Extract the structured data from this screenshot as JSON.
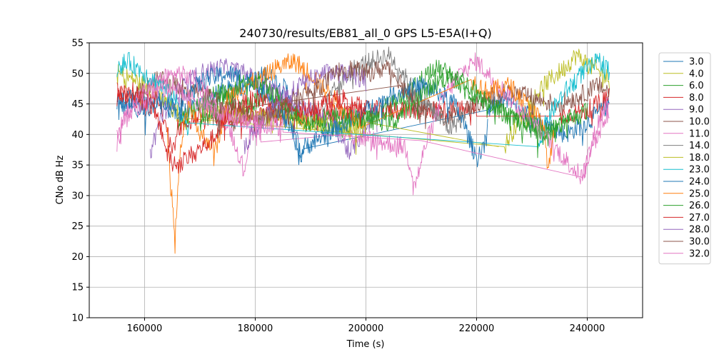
{
  "chart_data": {
    "type": "line",
    "title": "240730/results/EB81_all_0 GPS L5-E5A(I+Q)",
    "xlabel": "Time (s)",
    "ylabel": "CNo dB Hz",
    "xlim": [
      150000,
      250000
    ],
    "ylim": [
      10,
      55
    ],
    "xticks": [
      160000,
      180000,
      200000,
      220000,
      240000
    ],
    "yticks": [
      10,
      15,
      20,
      25,
      30,
      35,
      40,
      45,
      50,
      55
    ],
    "grid": true,
    "legend_position": "right",
    "series": [
      {
        "name": "3.0",
        "color": "#1f77b4",
        "points": [
          [
            155000,
            45
          ],
          [
            158000,
            44
          ],
          [
            162000,
            46
          ],
          [
            166000,
            43
          ],
          [
            170000,
            45
          ],
          [
            174000,
            47
          ],
          [
            178000,
            48
          ],
          [
            182000,
            50
          ],
          [
            186000,
            47
          ],
          [
            188000,
            37
          ],
          [
            189000,
            38
          ],
          [
            222000,
            44
          ],
          [
            226000,
            46
          ],
          [
            230000,
            43
          ],
          [
            236000,
            40
          ],
          [
            240000,
            42
          ],
          [
            244000,
            45
          ]
        ]
      },
      {
        "name": "4.0",
        "color": "#bcbd22",
        "points": [
          [
            155000,
            50
          ],
          [
            158000,
            49
          ],
          [
            162000,
            47
          ],
          [
            165000,
            44
          ],
          [
            168000,
            42
          ],
          [
            225000,
            38
          ],
          [
            228000,
            43
          ],
          [
            232000,
            48
          ],
          [
            236000,
            51
          ],
          [
            238000,
            53
          ],
          [
            241000,
            51
          ],
          [
            244000,
            49
          ]
        ]
      },
      {
        "name": "6.0",
        "color": "#2ca02c",
        "points": [
          [
            166000,
            42
          ],
          [
            170000,
            45
          ],
          [
            174000,
            47
          ],
          [
            178000,
            44
          ],
          [
            182000,
            47
          ],
          [
            186000,
            44
          ],
          [
            190000,
            42
          ],
          [
            196000,
            41
          ],
          [
            205000,
            45
          ],
          [
            209000,
            48
          ],
          [
            212000,
            51
          ],
          [
            215000,
            50
          ],
          [
            218000,
            47
          ],
          [
            222000,
            45
          ],
          [
            226000,
            43
          ],
          [
            230000,
            42
          ],
          [
            234000,
            40
          ],
          [
            237000,
            44
          ]
        ]
      },
      {
        "name": "8.0",
        "color": "#d62728",
        "points": [
          [
            155000,
            47
          ],
          [
            158000,
            46
          ],
          [
            160000,
            44
          ],
          [
            162000,
            46
          ],
          [
            164000,
            42
          ],
          [
            165000,
            37
          ],
          [
            166000,
            41
          ],
          [
            170000,
            43
          ],
          [
            180000,
            43
          ],
          [
            190000,
            43
          ],
          [
            200000,
            44
          ],
          [
            210000,
            44
          ],
          [
            220000,
            44
          ],
          [
            235000,
            43
          ],
          [
            240000,
            44
          ],
          [
            244000,
            46
          ]
        ]
      },
      {
        "name": "9.0",
        "color": "#9467bd",
        "points": [
          [
            161000,
            37
          ],
          [
            163000,
            43
          ],
          [
            166000,
            47
          ],
          [
            170000,
            50
          ],
          [
            174000,
            51
          ],
          [
            178000,
            50
          ],
          [
            182000,
            48
          ],
          [
            186000,
            46
          ],
          [
            190000,
            44
          ],
          [
            194000,
            42
          ],
          [
            197000,
            37
          ],
          [
            200000,
            41
          ],
          [
            202000,
            44
          ]
        ]
      },
      {
        "name": "10.0",
        "color": "#8c564b",
        "points": [
          [
            158000,
            46
          ],
          [
            162000,
            49
          ],
          [
            166000,
            48
          ],
          [
            170000,
            47
          ],
          [
            174000,
            45
          ],
          [
            176000,
            42
          ],
          [
            178000,
            44
          ],
          [
            206000,
            48
          ],
          [
            210000,
            45
          ],
          [
            214000,
            43
          ],
          [
            218000,
            44
          ],
          [
            222000,
            46
          ],
          [
            226000,
            47
          ],
          [
            230000,
            46
          ],
          [
            234000,
            45
          ],
          [
            238000,
            46
          ],
          [
            242000,
            48
          ],
          [
            244000,
            47
          ]
        ]
      },
      {
        "name": "11.0",
        "color": "#e377c2",
        "points": [
          [
            155000,
            40
          ],
          [
            157000,
            44
          ],
          [
            160000,
            47
          ],
          [
            163000,
            49
          ],
          [
            166000,
            50
          ],
          [
            169000,
            49
          ],
          [
            172000,
            46
          ],
          [
            175000,
            42
          ],
          [
            177000,
            37
          ],
          [
            178000,
            34
          ],
          [
            179000,
            40
          ],
          [
            181000,
            42
          ],
          [
            196000,
            40
          ],
          [
            207000,
            38
          ],
          [
            209000,
            32
          ],
          [
            211000,
            39
          ],
          [
            214000,
            46
          ],
          [
            217000,
            50
          ],
          [
            220000,
            52
          ],
          [
            222000,
            50
          ],
          [
            239000,
            33
          ],
          [
            240000,
            36
          ],
          [
            242000,
            42
          ],
          [
            244000,
            46
          ]
        ]
      },
      {
        "name": "14.0",
        "color": "#7f7f7f",
        "points": [
          [
            192000,
            44
          ],
          [
            195000,
            48
          ],
          [
            198000,
            51
          ],
          [
            201000,
            52
          ],
          [
            204000,
            53
          ],
          [
            206000,
            51
          ],
          [
            208000,
            48
          ],
          [
            212000,
            44
          ],
          [
            215000,
            41
          ],
          [
            218000,
            43
          ]
        ]
      },
      {
        "name": "18.0",
        "color": "#bcbd22",
        "points": [
          [
            170000,
            44
          ],
          [
            200000,
            41
          ],
          [
            224000,
            38
          ]
        ]
      },
      {
        "name": "23.0",
        "color": "#17becf",
        "points": [
          [
            155000,
            51
          ],
          [
            157000,
            52
          ],
          [
            160000,
            50
          ],
          [
            163000,
            48
          ],
          [
            166000,
            45
          ],
          [
            168000,
            41
          ],
          [
            231000,
            38
          ],
          [
            233000,
            43
          ],
          [
            236000,
            47
          ],
          [
            239000,
            50
          ],
          [
            242000,
            52
          ],
          [
            244000,
            51
          ]
        ]
      },
      {
        "name": "24.0",
        "color": "#1f77b4",
        "points": [
          [
            155000,
            45
          ],
          [
            157000,
            46
          ],
          [
            160000,
            44
          ],
          [
            163000,
            46
          ],
          [
            166000,
            44
          ],
          [
            168000,
            47
          ],
          [
            171000,
            49
          ],
          [
            175000,
            50
          ],
          [
            179000,
            49
          ],
          [
            183000,
            46
          ],
          [
            187000,
            40
          ],
          [
            188000,
            36
          ],
          [
            189000,
            38
          ],
          [
            202000,
            45
          ],
          [
            206000,
            47
          ],
          [
            210000,
            48
          ],
          [
            213000,
            47
          ],
          [
            216000,
            45
          ],
          [
            218000,
            41
          ],
          [
            220000,
            36
          ],
          [
            221000,
            38
          ],
          [
            222000,
            41
          ]
        ]
      },
      {
        "name": "25.0",
        "color": "#ff7f0e",
        "points": [
          [
            164000,
            41
          ],
          [
            165500,
            23
          ],
          [
            166500,
            38
          ],
          [
            168000,
            45
          ],
          [
            170000,
            40
          ],
          [
            173000,
            38
          ],
          [
            175000,
            46
          ],
          [
            178000,
            48
          ],
          [
            181000,
            49
          ],
          [
            184000,
            51
          ],
          [
            187000,
            52
          ],
          [
            190000,
            50
          ],
          [
            193000,
            47
          ],
          [
            196000,
            44
          ],
          [
            199000,
            42
          ],
          [
            219000,
            49
          ],
          [
            222000,
            47
          ],
          [
            226000,
            48
          ],
          [
            229000,
            45
          ],
          [
            232000,
            42
          ],
          [
            233000,
            34
          ],
          [
            234000,
            40
          ]
        ]
      },
      {
        "name": "26.0",
        "color": "#2ca02c",
        "points": [
          [
            170000,
            42
          ],
          [
            174000,
            46
          ],
          [
            178000,
            49
          ],
          [
            182000,
            48
          ],
          [
            186000,
            44
          ],
          [
            190000,
            42
          ],
          [
            194000,
            43
          ],
          [
            205000,
            42
          ],
          [
            208000,
            45
          ],
          [
            212000,
            48
          ],
          [
            216000,
            50
          ],
          [
            220000,
            47
          ],
          [
            224000,
            44
          ],
          [
            228000,
            42
          ],
          [
            232000,
            40
          ],
          [
            236000,
            42
          ],
          [
            240000,
            44
          ]
        ]
      },
      {
        "name": "27.0",
        "color": "#d62728",
        "points": [
          [
            155000,
            46
          ],
          [
            158000,
            47
          ],
          [
            161000,
            45
          ],
          [
            163000,
            41
          ],
          [
            164000,
            37
          ],
          [
            166000,
            35
          ],
          [
            172000,
            39
          ],
          [
            176000,
            44
          ],
          [
            180000,
            46
          ],
          [
            184000,
            45
          ],
          [
            188000,
            44
          ],
          [
            192000,
            45
          ],
          [
            196000,
            46
          ],
          [
            200000,
            44
          ]
        ]
      },
      {
        "name": "28.0",
        "color": "#9467bd",
        "points": [
          [
            178000,
            38
          ],
          [
            180000,
            41
          ],
          [
            184000,
            45
          ],
          [
            188000,
            48
          ],
          [
            192000,
            50
          ],
          [
            196000,
            50
          ],
          [
            200000,
            49
          ]
        ]
      },
      {
        "name": "30.0",
        "color": "#8c564b",
        "points": [
          [
            172000,
            43
          ],
          [
            176000,
            45
          ],
          [
            180000,
            42
          ],
          [
            184000,
            44
          ],
          [
            188000,
            46
          ],
          [
            192000,
            48
          ],
          [
            196000,
            51
          ],
          [
            200000,
            50
          ],
          [
            204000,
            51
          ],
          [
            206000,
            49
          ],
          [
            208000,
            46
          ],
          [
            211000,
            43
          ]
        ]
      },
      {
        "name": "32.0",
        "color": "#e377c2",
        "points": [
          [
            155000,
            38
          ],
          [
            156000,
            42
          ],
          [
            158000,
            44
          ],
          [
            162000,
            47
          ],
          [
            165000,
            48
          ],
          [
            168000,
            46
          ],
          [
            172000,
            44
          ],
          [
            176000,
            43
          ],
          [
            180000,
            42
          ],
          [
            185000,
            41
          ],
          [
            210000,
            39
          ],
          [
            239000,
            33
          ],
          [
            242000,
            40
          ],
          [
            244000,
            44
          ]
        ]
      }
    ]
  }
}
